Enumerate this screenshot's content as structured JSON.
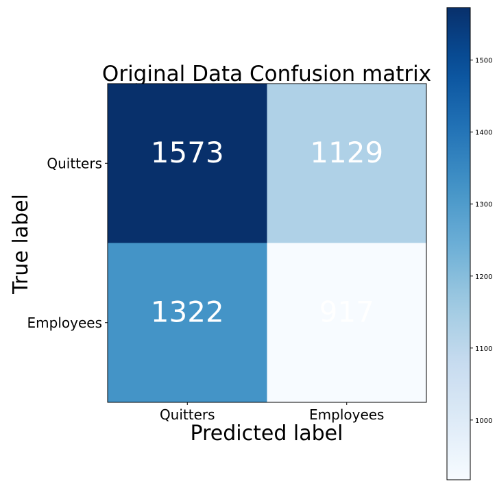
{
  "chart_data": {
    "type": "heatmap",
    "title": "Original Data Confusion matrix",
    "xlabel": "Predicted label",
    "ylabel": "True label",
    "x_categories": [
      "Quitters",
      "Employees"
    ],
    "y_categories": [
      "Quitters",
      "Employees"
    ],
    "values": [
      [
        1573,
        1129
      ],
      [
        1322,
        917
      ]
    ],
    "colormap": "Blues",
    "color_range": [
      917,
      1573
    ],
    "text_color": "#ffffff",
    "colorbar": {
      "ticks": [
        1000,
        1100,
        1200,
        1300,
        1400,
        1500
      ],
      "labels": [
        "1000",
        "1100",
        "1200",
        "1300",
        "1400",
        "1500"
      ]
    }
  }
}
